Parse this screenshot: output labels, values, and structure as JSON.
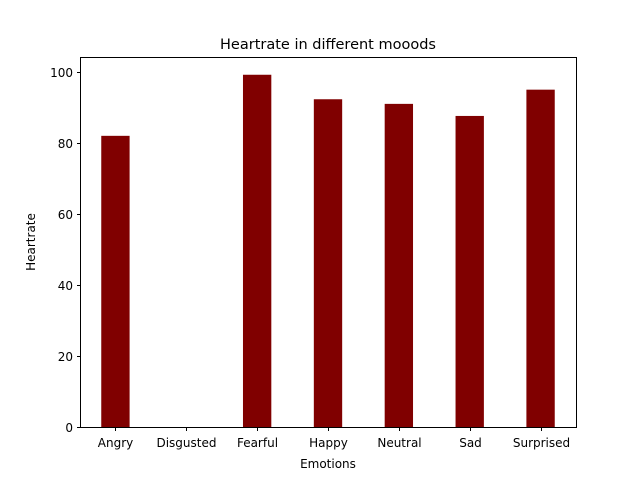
{
  "chart_data": {
    "type": "bar",
    "title": "Heartrate in different mooods",
    "xlabel": "Emotions",
    "ylabel": "Heartrate",
    "categories": [
      "Angry",
      "Disgusted",
      "Fearful",
      "Happy",
      "Neutral",
      "Sad",
      "Surprised"
    ],
    "values": [
      82,
      0,
      99.2,
      92.3,
      91,
      87.6,
      95
    ],
    "ylim": [
      0,
      104.2
    ],
    "yticks": [
      0,
      20,
      40,
      60,
      80,
      100
    ],
    "bar_color": "#800000",
    "grid": false,
    "legend": "none"
  }
}
